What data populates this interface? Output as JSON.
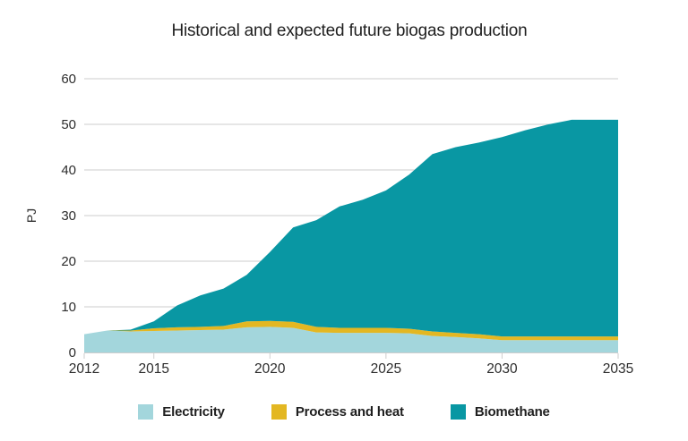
{
  "chart_data": {
    "type": "area",
    "stacked": true,
    "title": "Historical and expected future biogas production",
    "xlabel": "",
    "ylabel": "PJ",
    "x": [
      2012,
      2013,
      2014,
      2015,
      2016,
      2017,
      2018,
      2019,
      2020,
      2021,
      2022,
      2023,
      2024,
      2025,
      2026,
      2027,
      2028,
      2029,
      2030,
      2031,
      2032,
      2033,
      2034,
      2035
    ],
    "series": [
      {
        "name": "Electricity",
        "color": "#a3d6dc",
        "values": [
          4.0,
          4.8,
          4.6,
          4.7,
          4.8,
          4.9,
          5.0,
          5.5,
          5.6,
          5.4,
          4.4,
          4.3,
          4.3,
          4.3,
          4.2,
          3.6,
          3.4,
          3.1,
          2.7,
          2.7,
          2.7,
          2.7,
          2.7,
          2.7
        ]
      },
      {
        "name": "Process and heat",
        "color": "#e3b722",
        "values": [
          0.0,
          0.0,
          0.2,
          0.6,
          0.7,
          0.7,
          0.8,
          1.3,
          1.3,
          1.3,
          1.2,
          1.1,
          1.1,
          1.1,
          1.0,
          1.0,
          0.9,
          0.9,
          0.8,
          0.8,
          0.8,
          0.8,
          0.8,
          0.8
        ]
      },
      {
        "name": "Biomethane",
        "color": "#0997a3",
        "values": [
          0.0,
          0.0,
          0.2,
          1.5,
          4.8,
          6.9,
          8.2,
          10.2,
          15.1,
          20.7,
          23.4,
          26.6,
          28.1,
          30.1,
          33.8,
          38.9,
          40.7,
          42.0,
          43.7,
          45.2,
          46.5,
          47.5,
          47.5,
          47.5
        ]
      }
    ],
    "totals": [
      4.0,
      4.8,
      5.0,
      6.8,
      10.3,
      12.5,
      14.0,
      17.0,
      22.0,
      27.4,
      29.0,
      32.0,
      33.5,
      35.5,
      39.0,
      43.5,
      45.0,
      46.0,
      47.2,
      48.7,
      50.0,
      51.0,
      51.0,
      51.0
    ],
    "ylim": [
      0,
      60
    ],
    "y_ticks": [
      0,
      10,
      20,
      30,
      40,
      50,
      60
    ],
    "x_ticks": [
      2012,
      2015,
      2020,
      2025,
      2030,
      2035
    ],
    "grid": "horizontal",
    "legend_position": "bottom",
    "colors": {
      "grid": "#cecece",
      "axis": "#cecece",
      "tick_text": "#2d2d2d",
      "title_text": "#1f1f1f",
      "background": "#ffffff"
    }
  }
}
